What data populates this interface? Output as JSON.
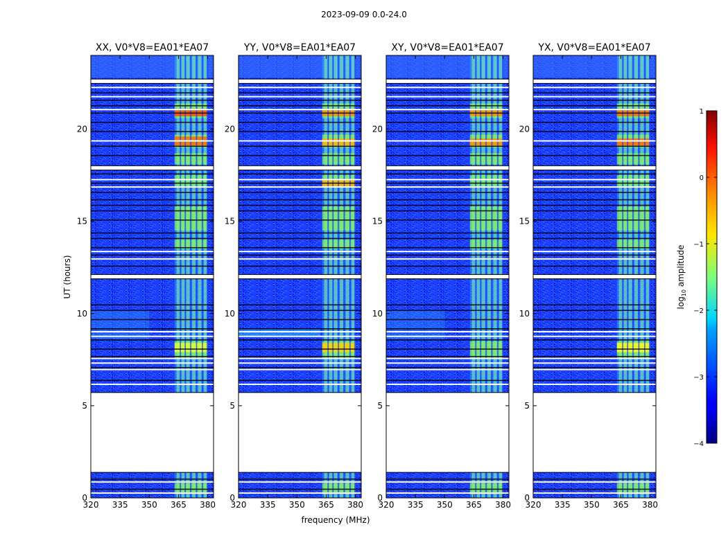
{
  "figure": {
    "suptitle": "2023-09-09 0.0-24.0"
  },
  "chart_data": {
    "type": "heatmap",
    "x_label": "frequency (MHz)",
    "y_label": "UT (hours)",
    "x_ticks": [
      320,
      335,
      350,
      365,
      380
    ],
    "y_ticks": [
      0,
      5,
      10,
      15,
      20
    ],
    "xlim": [
      320,
      383
    ],
    "ylim": [
      0,
      24
    ],
    "panels": [
      {
        "title": "XX, V0*V8=EA01*EA07",
        "pol": "XX"
      },
      {
        "title": "YY, V0*V8=EA01*EA07",
        "pol": "YY"
      },
      {
        "title": "XY, V0*V8=EA01*EA07",
        "pol": "XY"
      },
      {
        "title": "YX, V0*V8=EA01*EA07",
        "pol": "YX"
      }
    ],
    "data_gaps_hours": [
      [
        1.4,
        5.7
      ],
      [
        11.9,
        12.1
      ],
      [
        22.5,
        22.7
      ],
      [
        17.8,
        18.0
      ]
    ],
    "rfi_band_mhz": [
      363,
      380
    ],
    "colorbar": {
      "label": "log",
      "label_sub": "10",
      "label_rest": " amplitude",
      "ticks": [
        1,
        0,
        -1,
        -2,
        -3,
        -4
      ],
      "range": [
        -4,
        1
      ],
      "colormap": "jet"
    }
  }
}
